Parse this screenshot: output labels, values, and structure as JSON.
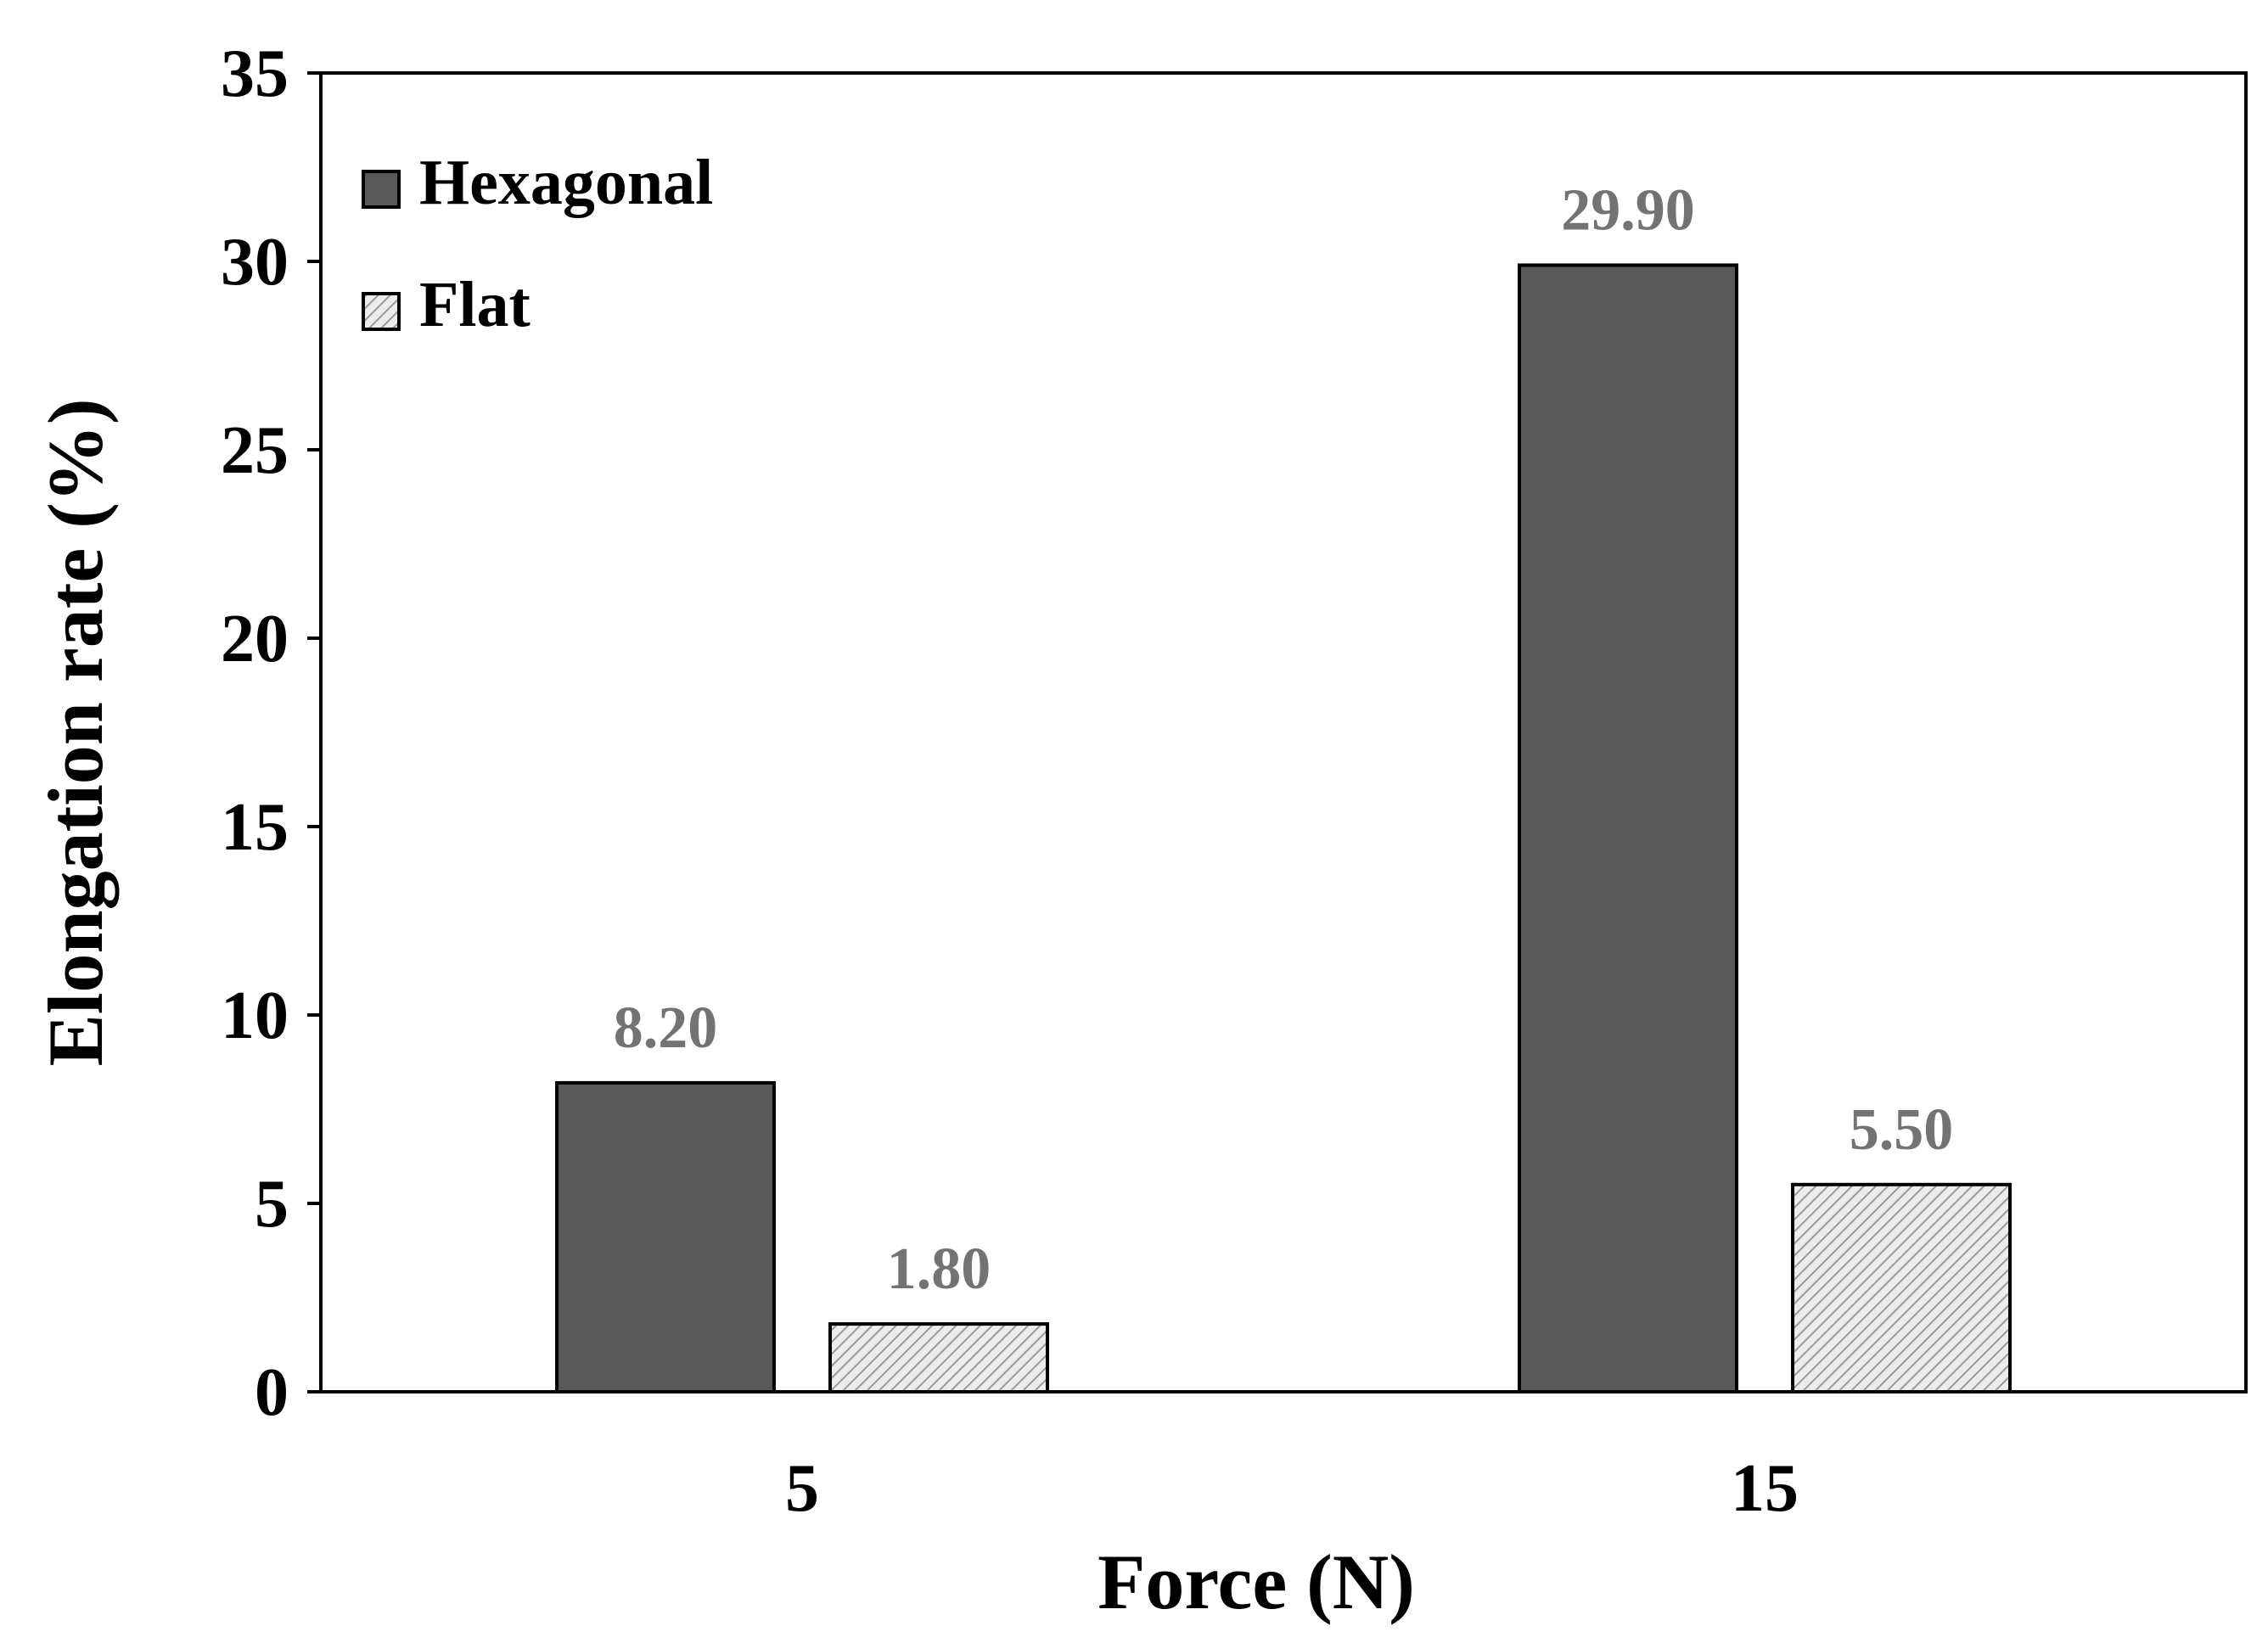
{
  "chart_data": {
    "type": "bar",
    "title": "",
    "xlabel": "Force (N)",
    "ylabel": "Elongation rate (%)",
    "categories": [
      "5",
      "15"
    ],
    "ylim": [
      0,
      35
    ],
    "yticks": [
      0,
      5,
      10,
      15,
      20,
      25,
      30,
      35
    ],
    "ytick_labels": [
      "0",
      "5",
      "10",
      "15",
      "20",
      "25",
      "30",
      "35"
    ],
    "grid": false,
    "legend_position": "top-left",
    "series": [
      {
        "name": "Hexagonal",
        "values": [
          8.2,
          29.9
        ],
        "labels": [
          "8.20",
          "29.90"
        ],
        "color": "#595959",
        "pattern": "solid"
      },
      {
        "name": "Flat",
        "values": [
          1.8,
          5.5
        ],
        "labels": [
          "1.80",
          "5.50"
        ],
        "color": "#d9d9d9",
        "pattern": "diagonal-hatch"
      }
    ],
    "data_label_color": "#737373"
  }
}
